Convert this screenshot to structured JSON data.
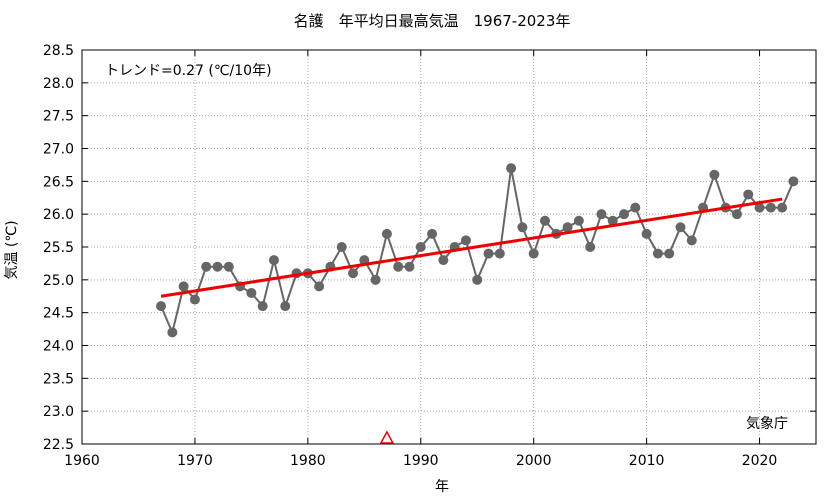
{
  "chart_data": {
    "type": "line",
    "title": "名護　年平均日最高気温　1967-2023年",
    "xlabel": "年",
    "ylabel": "気温 (℃)",
    "xlim": [
      1960,
      2025
    ],
    "ylim": [
      22.5,
      28.5
    ],
    "x_ticks": [
      1960,
      1970,
      1980,
      1990,
      2000,
      2010,
      2020
    ],
    "y_ticks": [
      22.5,
      23.0,
      23.5,
      24.0,
      24.5,
      25.0,
      25.5,
      26.0,
      26.5,
      27.0,
      27.5,
      28.0,
      28.5
    ],
    "grid": true,
    "trend_label": "トレンド=0.27 (℃/10年)",
    "source_label": "気象庁",
    "series": [
      {
        "color": "#666666",
        "x": [
          1967,
          1968,
          1969,
          1970,
          1971,
          1972,
          1973,
          1974,
          1975,
          1976,
          1977,
          1978,
          1979,
          1980,
          1981,
          1982,
          1983,
          1984,
          1985,
          1986,
          1987,
          1988,
          1989,
          1990,
          1991,
          1992,
          1993,
          1994,
          1995,
          1996,
          1997,
          1998,
          1999,
          2000,
          2001,
          2002,
          2003,
          2004,
          2005,
          2006,
          2007,
          2008,
          2009,
          2010,
          2011,
          2012,
          2013,
          2014,
          2015,
          2016,
          2017,
          2018,
          2019,
          2020,
          2021,
          2022,
          2023
        ],
        "y": [
          24.6,
          24.2,
          24.9,
          24.7,
          25.2,
          25.2,
          25.2,
          24.9,
          24.8,
          24.6,
          25.3,
          24.6,
          25.1,
          25.1,
          24.9,
          25.2,
          25.5,
          25.1,
          25.3,
          25.0,
          25.7,
          25.2,
          25.2,
          25.5,
          25.7,
          25.3,
          25.5,
          25.6,
          25.0,
          25.4,
          25.4,
          26.7,
          25.8,
          25.4,
          25.9,
          25.7,
          25.8,
          25.9,
          25.5,
          26.0,
          25.9,
          26.0,
          26.1,
          25.7,
          25.4,
          25.4,
          25.8,
          25.6,
          26.1,
          26.6,
          26.1,
          26.0,
          26.3,
          26.1,
          26.1,
          26.1,
          26.5
        ]
      },
      {
        "color": "#ee0000",
        "x": [
          1967,
          2022
        ],
        "y": [
          24.75,
          26.23
        ]
      }
    ],
    "markers": [
      {
        "shape": "triangle",
        "color": "#ee0000",
        "x": 1987,
        "y": 22.5
      }
    ]
  }
}
